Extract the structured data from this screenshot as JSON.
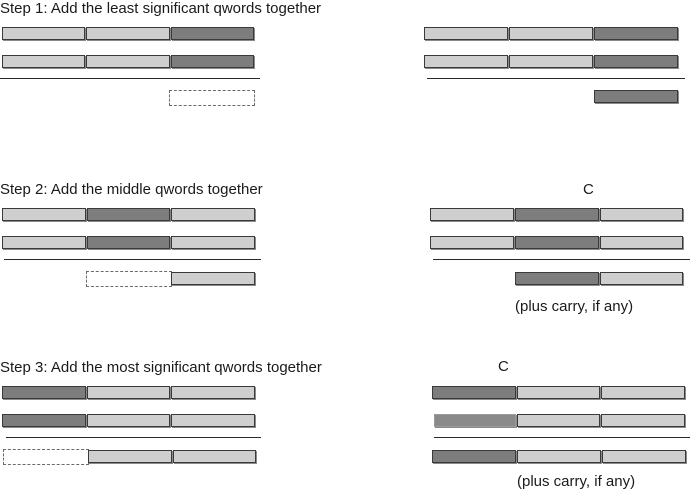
{
  "steps": [
    {
      "title": "Step 1: Add the least significant qwords together"
    },
    {
      "title": "Step 2: Add the middle qwords together",
      "carry_marker": "C",
      "note": "(plus carry, if any)"
    },
    {
      "title": "Step 3: Add the most significant qwords together",
      "carry_marker": "C",
      "note": "(plus carry, if any)"
    }
  ]
}
